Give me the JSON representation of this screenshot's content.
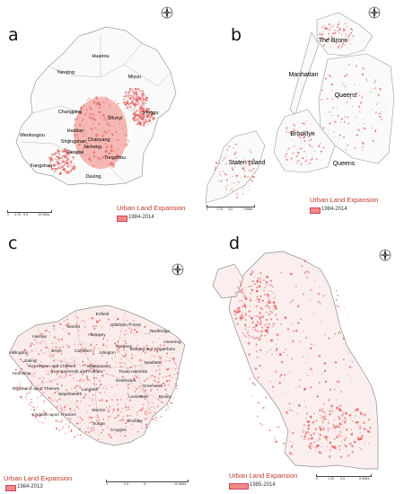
{
  "panels": [
    {
      "letter": "a",
      "legend_title": "Urban Land Expansion",
      "legend_label": "1984-2014",
      "scale_ticks": [
        "0",
        "4.75",
        "9.5",
        "19 Miles"
      ],
      "places": [
        "Huairou",
        "Yanqing",
        "Miyun",
        "Changping",
        "Shunyi",
        "Pinggu",
        "Haidian",
        "Mentougou",
        "Chaoyang",
        "Shijingshan",
        "Xicheng",
        "Fengtai",
        "Tongzhou",
        "Fangshan",
        "Daxing"
      ]
    },
    {
      "letter": "b",
      "legend_title": "Urban Land Expansion",
      "legend_label": "1984-2014",
      "scale_ticks": [
        "0",
        "1.75",
        "3.5",
        "7 Miles"
      ],
      "places": [
        "The Bronx",
        "Manhattan",
        "Queens",
        "Brooklyn",
        "Queens",
        "Staten Island"
      ]
    },
    {
      "letter": "c",
      "legend_title": "Urban Land Expansion",
      "legend_label": "1984-2013",
      "scale_ticks": [
        "0",
        "2.5",
        "5",
        "10 Miles"
      ],
      "places": [
        "Enfield",
        "Barnet",
        "Waltham Forest",
        "Redbridge",
        "Haringey",
        "Havering",
        "Harrow",
        "Hillingdon",
        "Brent",
        "Camden",
        "Islington",
        "Hackney",
        "Barking and Dagenham",
        "Ealing",
        "Kensington and Chelsea",
        "Westminster",
        "Newham",
        "Hounslow",
        "Hammersmith and Fulham",
        "Tower Hamlets",
        "Southwark",
        "Greenwich",
        "Richmond upon Thames",
        "Lambeth",
        "Bexley",
        "Wandsworth",
        "Lewisham",
        "Merton",
        "Kingston upon Thames",
        "Sutton",
        "Bromley",
        "Croydon"
      ]
    },
    {
      "letter": "d",
      "legend_title": "Urban Land Expansion",
      "legend_label": "1985-2014",
      "scale_ticks": [
        "0",
        "1.25",
        "2.5",
        "5 Miles"
      ],
      "places": []
    }
  ],
  "colors": {
    "expansion": "#f08a84",
    "expansion_dark": "#e05a57",
    "boundary": "#9a9a9a",
    "legend_title": "#c0392b"
  },
  "icons": {
    "north_arrow": "compass-north-arrow-icon"
  }
}
